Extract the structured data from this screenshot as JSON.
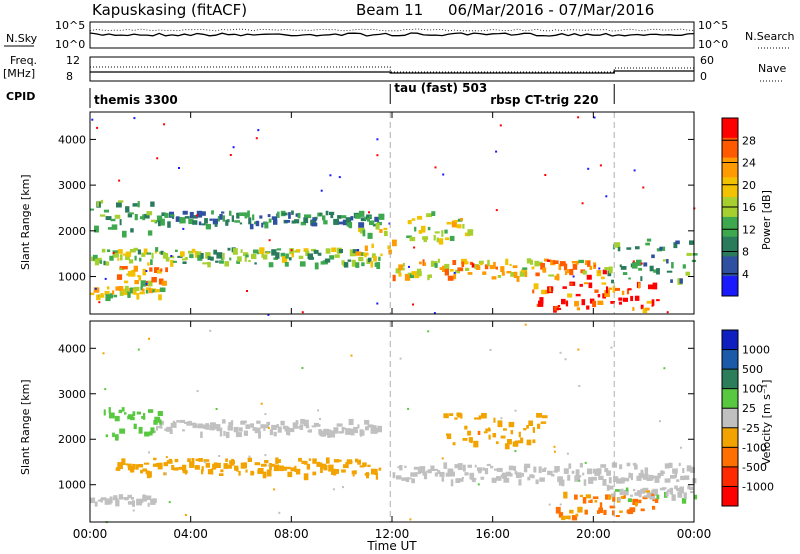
{
  "header": {
    "station": "Kapuskasing (fitACF)",
    "beam": "Beam 11",
    "dates": "06/Mar/2016 - 07/Mar/2016"
  },
  "left_labels": {
    "nsky": "N.Sky",
    "freq_a": "Freq.",
    "freq_b": "[MHz]",
    "cpid": "CPID"
  },
  "right_labels": {
    "nsearch": "N.Search",
    "nave": "Nave"
  },
  "nsky_ticks": {
    "top": "10^5",
    "bottom": "10^0"
  },
  "freq_ticks": {
    "top": "12",
    "bottom": "8"
  },
  "nave_ticks": {
    "top": "60",
    "bottom": "0"
  },
  "cpid_segments": [
    {
      "label": "themis 3300",
      "start": 0.0,
      "end": 11.93
    },
    {
      "label": "tau (fast) 503",
      "start": 11.93,
      "end": 20.83
    },
    {
      "label": "rbsp CT-trig 220",
      "start": 20.83,
      "end": 24.0
    }
  ],
  "power_cbar": {
    "title": "Power [dB]",
    "ticks": [
      "28",
      "24",
      "20",
      "16",
      "12",
      "8",
      "4"
    ],
    "colors": [
      "#ff0000",
      "#ff5a00",
      "#ff9a00",
      "#f2c200",
      "#a6d030",
      "#3ea84e",
      "#2a7a5c",
      "#2f4fa0",
      "#1a1aff"
    ]
  },
  "velocity_cbar": {
    "title": "Velocity [m s⁻¹]",
    "ticks": [
      "1000",
      "500",
      "100",
      "25",
      "-25",
      "-100",
      "-500",
      "-1000"
    ],
    "colors": [
      "#1020c0",
      "#1a5aa8",
      "#2c7e5a",
      "#58c840",
      "#c0c0c0",
      "#f2a300",
      "#ff7000",
      "#ff2a00",
      "#ff0000"
    ]
  },
  "chart_data": [
    {
      "type": "heatmap",
      "title": "Kapuskasing (fitACF) Beam 11 06/Mar/2016 - 07/Mar/2016",
      "xlabel": "Time UT",
      "ylabel": "Slant Range [km]",
      "xlim": [
        "00:00",
        "00:00"
      ],
      "x_ticks": [
        "00:00",
        "04:00",
        "08:00",
        "12:00",
        "16:00",
        "20:00",
        "00:00"
      ],
      "y_ticks": [
        1000,
        2000,
        3000,
        4000
      ],
      "ylim": [
        180,
        4600
      ],
      "colorbar": "Power [dB]",
      "bands": [
        {
          "t0": 0.0,
          "t1": 2.8,
          "r0": 600,
          "r1": 800,
          "value": 18
        },
        {
          "t0": 1.0,
          "t1": 3.0,
          "r0": 900,
          "r1": 1250,
          "value": 22
        },
        {
          "t0": 0.0,
          "t1": 11.5,
          "r0": 1300,
          "r1": 1650,
          "value": 14
        },
        {
          "t0": 2.5,
          "t1": 11.5,
          "r0": 2150,
          "r1": 2450,
          "value": 8
        },
        {
          "t0": 0.0,
          "t1": 2.5,
          "r0": 2000,
          "r1": 2800,
          "value": 12
        },
        {
          "t0": 10.5,
          "t1": 12.0,
          "r0": 1300,
          "r1": 2300,
          "value": 18
        },
        {
          "t0": 12.0,
          "t1": 20.5,
          "r0": 1000,
          "r1": 1400,
          "value": 22
        },
        {
          "t0": 12.5,
          "t1": 15.0,
          "r0": 1800,
          "r1": 2500,
          "value": 18
        },
        {
          "t0": 17.5,
          "t1": 22.5,
          "r0": 300,
          "r1": 900,
          "value": 30
        },
        {
          "t0": 20.5,
          "t1": 24.0,
          "r0": 900,
          "r1": 1900,
          "value": 10
        }
      ]
    },
    {
      "type": "heatmap",
      "xlabel": "Time UT",
      "ylabel": "Slant Range [km]",
      "x_ticks": [
        "00:00",
        "04:00",
        "08:00",
        "12:00",
        "16:00",
        "20:00",
        "00:00"
      ],
      "y_ticks": [
        1000,
        2000,
        3000,
        4000
      ],
      "ylim": [
        180,
        4600
      ],
      "colorbar": "Velocity [m s⁻¹]",
      "bands": [
        {
          "t0": 0.0,
          "t1": 2.5,
          "r0": 600,
          "r1": 800,
          "value": 0
        },
        {
          "t0": 1.0,
          "t1": 11.5,
          "r0": 1250,
          "r1": 1600,
          "value": -200
        },
        {
          "t0": 2.5,
          "t1": 11.5,
          "r0": 2150,
          "r1": 2450,
          "value": 0
        },
        {
          "t0": 0.5,
          "t1": 2.8,
          "r0": 2100,
          "r1": 2800,
          "value": 200
        },
        {
          "t0": 12.0,
          "t1": 24.0,
          "r0": 1100,
          "r1": 1500,
          "value": 0
        },
        {
          "t0": 14.0,
          "t1": 18.0,
          "r0": 1900,
          "r1": 2600,
          "value": -300
        },
        {
          "t0": 18.5,
          "t1": 22.5,
          "r0": 300,
          "r1": 900,
          "value": -400
        },
        {
          "t0": 20.5,
          "t1": 24.0,
          "r0": 700,
          "r1": 1000,
          "value": 100
        }
      ]
    }
  ]
}
